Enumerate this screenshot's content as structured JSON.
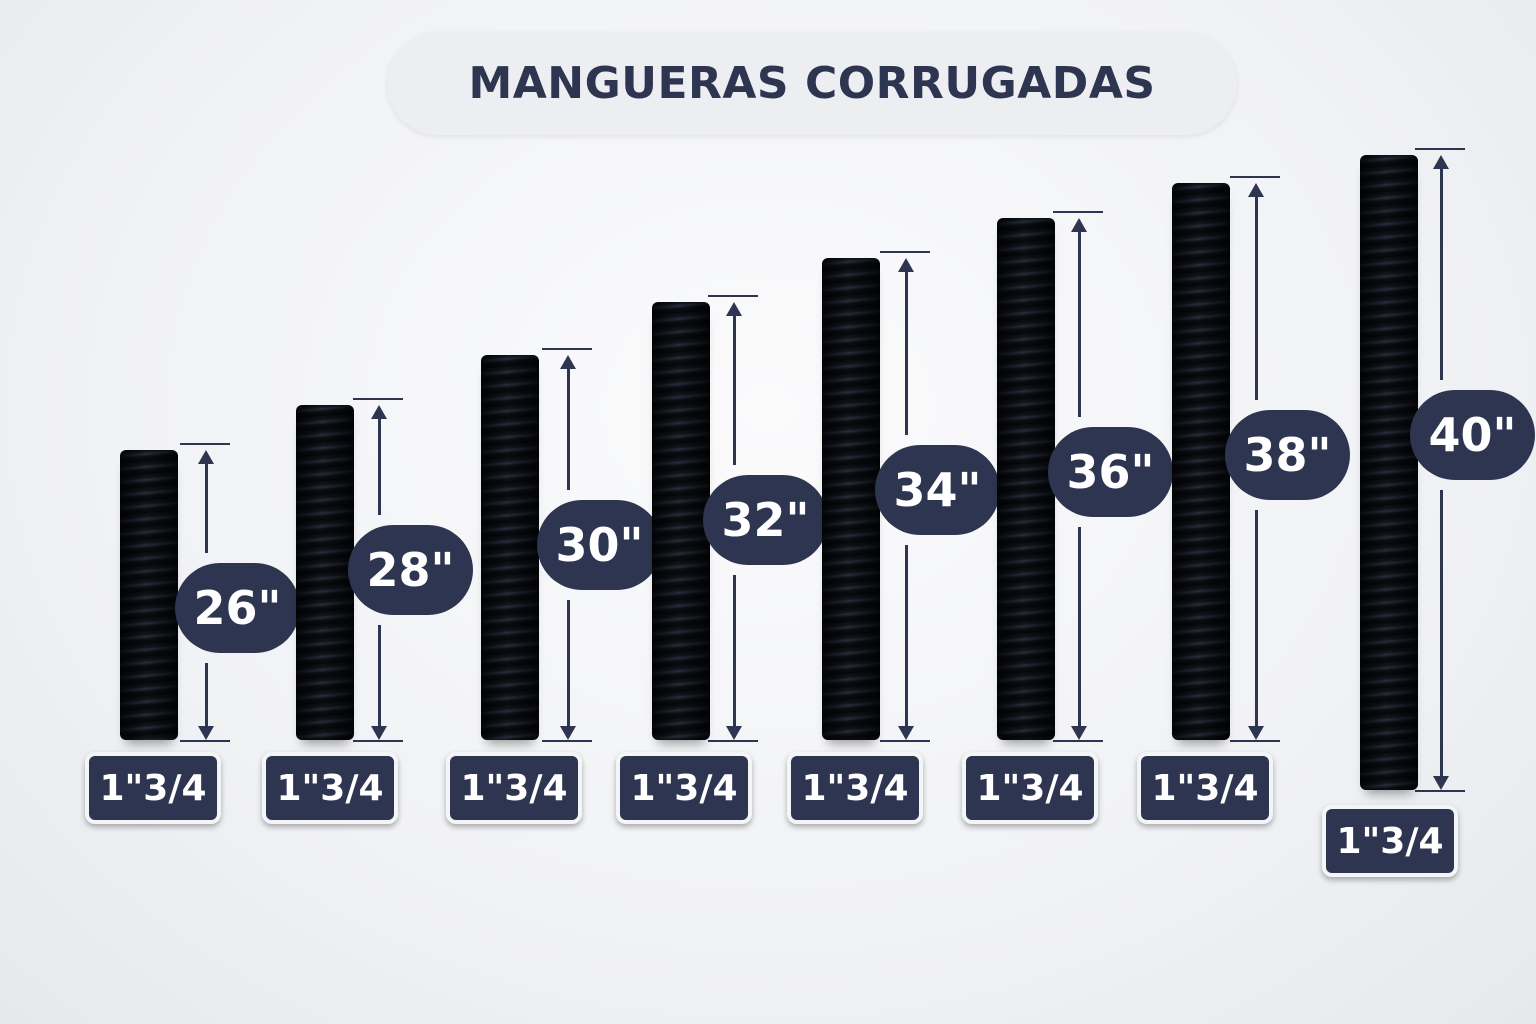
{
  "title": "MANGUERAS CORRUGADAS",
  "colors": {
    "navy": "#2e3550",
    "hose": "#15181d",
    "background": "#f1f2f5"
  },
  "items": [
    {
      "length": "26\"",
      "diameter": "1\"3/4"
    },
    {
      "length": "28\"",
      "diameter": "1\"3/4"
    },
    {
      "length": "30\"",
      "diameter": "1\"3/4"
    },
    {
      "length": "32\"",
      "diameter": "1\"3/4"
    },
    {
      "length": "34\"",
      "diameter": "1\"3/4"
    },
    {
      "length": "36\"",
      "diameter": "1\"3/4"
    },
    {
      "length": "38\"",
      "diameter": "1\"3/4"
    },
    {
      "length": "40\"",
      "diameter": "1\"3/4"
    }
  ]
}
